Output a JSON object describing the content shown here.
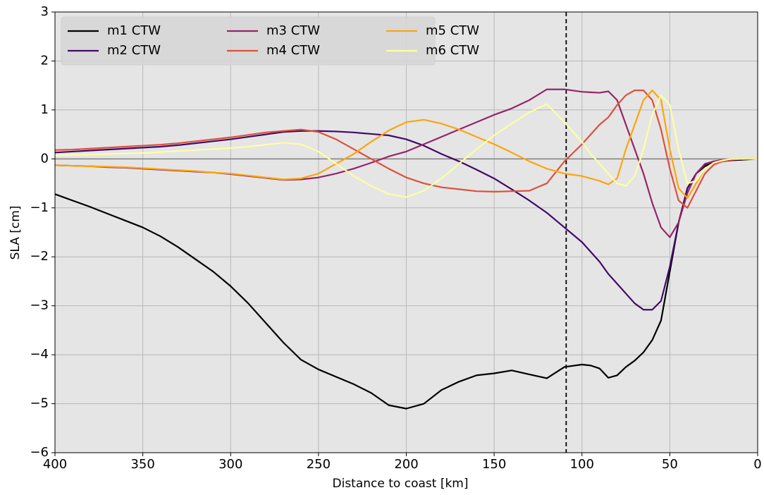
{
  "chart_data": {
    "type": "line",
    "xlabel": "Distance to coast [km]",
    "ylabel": "SLA [cm]",
    "xlim": [
      400,
      0
    ],
    "ylim": [
      -6,
      3
    ],
    "xticks": [
      400,
      350,
      300,
      250,
      200,
      150,
      100,
      50,
      0
    ],
    "yticks": [
      {
        "value": -6,
        "label": "−6"
      },
      {
        "value": -5,
        "label": "−5"
      },
      {
        "value": -4,
        "label": "−4"
      },
      {
        "value": -3,
        "label": "−3"
      },
      {
        "value": -2,
        "label": "−2"
      },
      {
        "value": -1,
        "label": "−1"
      },
      0,
      1,
      2,
      3
    ],
    "grid": true,
    "legend": "upper left",
    "legend_columns": 3,
    "hline": 0,
    "vline": 109,
    "x": [
      400,
      390,
      380,
      370,
      360,
      350,
      340,
      330,
      320,
      310,
      300,
      290,
      280,
      270,
      260,
      250,
      240,
      230,
      220,
      210,
      200,
      190,
      180,
      170,
      160,
      150,
      140,
      130,
      120,
      110,
      100,
      95,
      90,
      85,
      80,
      75,
      70,
      65,
      60,
      55,
      50,
      45,
      40,
      35,
      30,
      25,
      20,
      15,
      10,
      5,
      0
    ],
    "series": [
      {
        "name": "m1 CTW",
        "color": "#000000",
        "values": [
          -0.72,
          -0.85,
          -0.98,
          -1.12,
          -1.26,
          -1.4,
          -1.58,
          -1.8,
          -2.05,
          -2.3,
          -2.6,
          -2.95,
          -3.35,
          -3.75,
          -4.1,
          -4.3,
          -4.45,
          -4.6,
          -4.78,
          -5.03,
          -5.1,
          -5.0,
          -4.72,
          -4.55,
          -4.42,
          -4.38,
          -4.32,
          -4.4,
          -4.48,
          -4.25,
          -4.2,
          -4.22,
          -4.28,
          -4.47,
          -4.42,
          -4.25,
          -4.12,
          -3.95,
          -3.7,
          -3.3,
          -2.3,
          -1.3,
          -0.6,
          -0.3,
          -0.15,
          -0.08,
          -0.05,
          -0.03,
          -0.02,
          -0.01,
          0
        ]
      },
      {
        "name": "m2 CTW",
        "color": "#420a68",
        "values": [
          0.13,
          0.15,
          0.17,
          0.19,
          0.21,
          0.23,
          0.25,
          0.28,
          0.32,
          0.36,
          0.4,
          0.45,
          0.5,
          0.55,
          0.57,
          0.57,
          0.56,
          0.54,
          0.51,
          0.48,
          0.4,
          0.27,
          0.1,
          -0.05,
          -0.22,
          -0.4,
          -0.62,
          -0.85,
          -1.1,
          -1.4,
          -1.7,
          -1.9,
          -2.1,
          -2.35,
          -2.55,
          -2.75,
          -2.95,
          -3.08,
          -3.08,
          -2.9,
          -2.2,
          -1.3,
          -0.6,
          -0.3,
          -0.12,
          -0.05,
          -0.03,
          -0.02,
          -0.01,
          0,
          0
        ]
      },
      {
        "name": "m3 CTW",
        "color": "#932667",
        "values": [
          -0.13,
          -0.14,
          -0.15,
          -0.17,
          -0.18,
          -0.2,
          -0.22,
          -0.24,
          -0.26,
          -0.28,
          -0.31,
          -0.35,
          -0.39,
          -0.43,
          -0.42,
          -0.38,
          -0.3,
          -0.2,
          -0.08,
          0.05,
          0.15,
          0.3,
          0.45,
          0.6,
          0.75,
          0.9,
          1.03,
          1.2,
          1.42,
          1.42,
          1.37,
          1.36,
          1.35,
          1.38,
          1.2,
          0.7,
          0.2,
          -0.3,
          -0.9,
          -1.4,
          -1.6,
          -1.3,
          -0.7,
          -0.3,
          -0.1,
          -0.05,
          -0.02,
          0,
          0,
          0,
          0
        ]
      },
      {
        "name": "m4 CTW",
        "color": "#dd513a",
        "values": [
          0.18,
          0.19,
          0.21,
          0.23,
          0.25,
          0.27,
          0.29,
          0.32,
          0.36,
          0.4,
          0.44,
          0.49,
          0.54,
          0.57,
          0.6,
          0.55,
          0.4,
          0.2,
          0.0,
          -0.2,
          -0.38,
          -0.5,
          -0.58,
          -0.62,
          -0.66,
          -0.67,
          -0.66,
          -0.65,
          -0.5,
          -0.05,
          0.3,
          0.5,
          0.7,
          0.85,
          1.1,
          1.3,
          1.4,
          1.4,
          1.2,
          0.6,
          -0.2,
          -0.85,
          -1.0,
          -0.65,
          -0.3,
          -0.12,
          -0.05,
          -0.02,
          0,
          0,
          0
        ]
      },
      {
        "name": "m5 CTW",
        "color": "#fca50a",
        "values": [
          -0.13,
          -0.14,
          -0.15,
          -0.16,
          -0.17,
          -0.19,
          -0.21,
          -0.23,
          -0.25,
          -0.28,
          -0.3,
          -0.34,
          -0.38,
          -0.42,
          -0.4,
          -0.3,
          -0.1,
          0.1,
          0.35,
          0.58,
          0.75,
          0.8,
          0.72,
          0.6,
          0.45,
          0.3,
          0.13,
          -0.05,
          -0.2,
          -0.3,
          -0.35,
          -0.4,
          -0.45,
          -0.52,
          -0.4,
          0.2,
          0.7,
          1.2,
          1.4,
          1.2,
          0.2,
          -0.6,
          -0.8,
          -0.5,
          -0.2,
          -0.08,
          -0.03,
          0,
          0,
          0,
          0
        ]
      },
      {
        "name": "m6 CTW",
        "color": "#fcffa4",
        "values": [
          0.07,
          0.08,
          0.09,
          0.1,
          0.11,
          0.12,
          0.14,
          0.16,
          0.18,
          0.2,
          0.22,
          0.25,
          0.29,
          0.33,
          0.3,
          0.15,
          -0.1,
          -0.35,
          -0.55,
          -0.72,
          -0.78,
          -0.65,
          -0.4,
          -0.1,
          0.2,
          0.48,
          0.72,
          0.95,
          1.12,
          0.75,
          0.35,
          0.1,
          -0.1,
          -0.3,
          -0.5,
          -0.55,
          -0.35,
          0.2,
          0.9,
          1.3,
          1.1,
          0.2,
          -0.5,
          -0.45,
          -0.2,
          -0.08,
          -0.03,
          0,
          0,
          0,
          0
        ]
      }
    ]
  }
}
